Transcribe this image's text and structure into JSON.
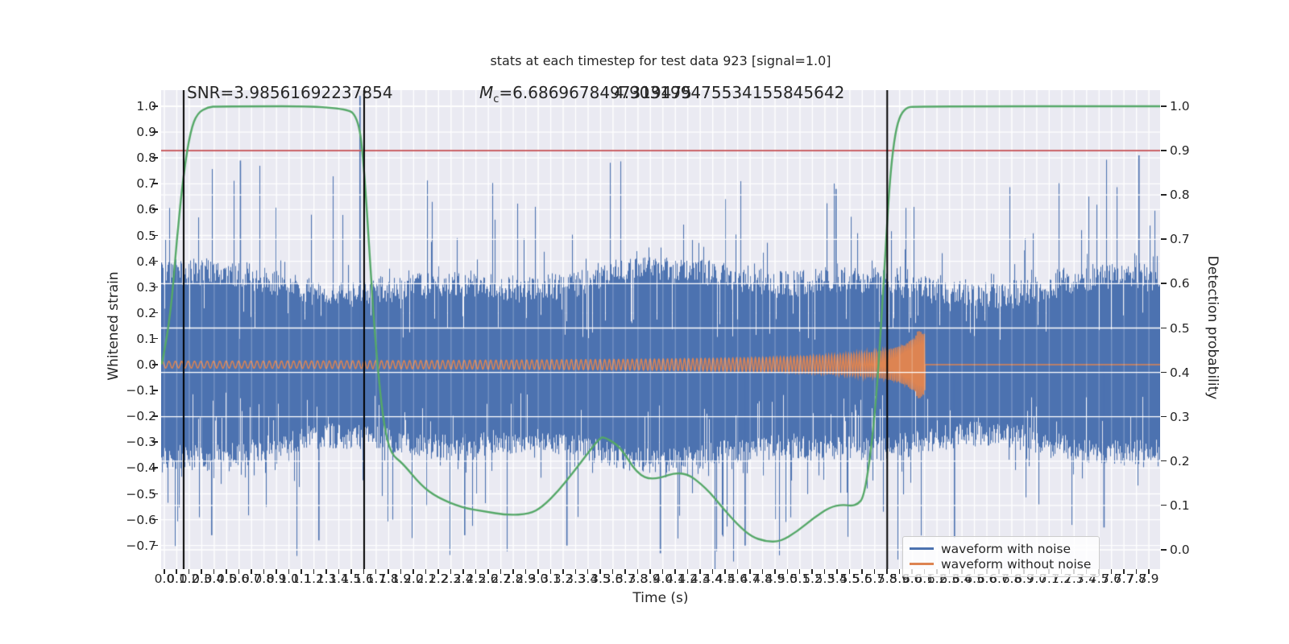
{
  "colors": {
    "figure_background": "#ffffff",
    "axes_background": "#eaeaf2",
    "grid": "#ffffff",
    "blue": "#4c72b0",
    "orange": "#dd8452",
    "green": "#55a868",
    "red": "#c44e52",
    "black": "#000000",
    "text": "#262626"
  },
  "chart_data": {
    "type": "line",
    "title": "stats at each timestep for test data 923 [signal=1.0]",
    "xlabel": "Time (s)",
    "ylabel_left": "Whitened strain",
    "ylabel_right": "Detection probability",
    "xlim": [
      -0.03,
      7.99
    ],
    "ylim_left": [
      -0.79,
      1.06
    ],
    "ylim_right": [
      -0.044,
      1.044
    ],
    "grid": "on",
    "x_ticks": [
      "0.0",
      "0.1",
      "0.2",
      "0.3",
      "0.4",
      "0.5",
      "0.6",
      "0.7",
      "0.8",
      "0.9",
      "1.0",
      "1.1",
      "1.2",
      "1.3",
      "1.4",
      "1.5",
      "1.6",
      "1.7",
      "1.8",
      "1.9",
      "2.0",
      "2.1",
      "2.2",
      "2.3",
      "2.4",
      "2.5",
      "2.6",
      "2.7",
      "2.8",
      "2.9",
      "3.0",
      "3.1",
      "3.2",
      "3.3",
      "3.4",
      "3.5",
      "3.6",
      "3.7",
      "3.8",
      "3.9",
      "4.0",
      "4.1",
      "4.2",
      "4.3",
      "4.4",
      "4.5",
      "4.6",
      "4.7",
      "4.8",
      "4.9",
      "5.0",
      "5.1",
      "5.2",
      "5.3",
      "5.4",
      "5.5",
      "5.6",
      "5.7",
      "5.8",
      "5.9",
      "6.0",
      "6.1",
      "6.2",
      "6.3",
      "6.4",
      "6.5",
      "6.6",
      "6.7",
      "6.8",
      "6.9",
      "7.0",
      "7.1",
      "7.2",
      "7.3",
      "7.4",
      "7.5",
      "7.6",
      "7.7",
      "7.8",
      "7.9"
    ],
    "y_ticks_left": [
      "1.0",
      "0.9",
      "0.8",
      "0.7",
      "0.6",
      "0.5",
      "0.4",
      "0.3",
      "0.2",
      "0.1",
      "0.0",
      "−0.1",
      "−0.2",
      "−0.3",
      "−0.4",
      "−0.5",
      "−0.6",
      "−0.7"
    ],
    "y_ticks_right": [
      "1.0",
      "0.9",
      "0.8",
      "0.7",
      "0.6",
      "0.5",
      "0.4",
      "0.3",
      "0.2",
      "0.1",
      "0.0"
    ],
    "annotations": {
      "snr": "SNR=3.98561692237854",
      "mc_prefix": "M",
      "mc_subscript": "c",
      "mc_value": "=6.6869678497319475",
      "overlap_value": "4.903199475534155845642"
    },
    "threshold": {
      "axis": "right",
      "value": 0.9
    },
    "vlines": {
      "times": [
        0.155,
        1.603,
        5.8
      ]
    },
    "series": [
      {
        "name": "waveform with noise",
        "kind": "noise",
        "axis": "left",
        "solid_band": 0.27,
        "typical_spike": 0.45,
        "max_spike": 0.8,
        "notable_spikes_top": [
          [
            0.61,
            0.79
          ],
          [
            1.57,
            1.04
          ],
          [
            5.39,
            0.68
          ],
          [
            7.82,
            0.81
          ]
        ],
        "notable_spikes_bottom": [
          [
            0.38,
            -0.66
          ],
          [
            1.24,
            -0.68
          ],
          [
            2.41,
            -0.66
          ],
          [
            3.23,
            -0.7
          ],
          [
            3.98,
            -0.73
          ],
          [
            4.66,
            -0.7
          ],
          [
            6.34,
            -0.67
          ],
          [
            7.54,
            -0.63
          ]
        ]
      },
      {
        "name": "waveform without noise",
        "kind": "chirp",
        "axis": "left",
        "t_merger": 6.103,
        "base_amplitude": 0.013,
        "peak_amplitude": 0.13,
        "base_frequency_hz": 19.3,
        "post_merger_value": 0.0
      },
      {
        "name": "detection probability",
        "kind": "curve",
        "axis": "right",
        "points": [
          [
            -0.02,
            0.42
          ],
          [
            0.01,
            0.46
          ],
          [
            0.06,
            0.56
          ],
          [
            0.1,
            0.7
          ],
          [
            0.155,
            0.85
          ],
          [
            0.21,
            0.945
          ],
          [
            0.265,
            0.985
          ],
          [
            0.35,
            0.998
          ],
          [
            0.43,
            1.0
          ],
          [
            1.46,
            1.0
          ],
          [
            1.56,
            0.97
          ],
          [
            1.6,
            0.87
          ],
          [
            1.64,
            0.7
          ],
          [
            1.68,
            0.52
          ],
          [
            1.72,
            0.385
          ],
          [
            1.765,
            0.275
          ],
          [
            1.82,
            0.215
          ],
          [
            1.91,
            0.196
          ],
          [
            2.06,
            0.145
          ],
          [
            2.19,
            0.118
          ],
          [
            2.39,
            0.095
          ],
          [
            2.56,
            0.087
          ],
          [
            2.75,
            0.078
          ],
          [
            2.93,
            0.081
          ],
          [
            3.03,
            0.096
          ],
          [
            3.16,
            0.132
          ],
          [
            3.29,
            0.178
          ],
          [
            3.41,
            0.222
          ],
          [
            3.5,
            0.254
          ],
          [
            3.54,
            0.253
          ],
          [
            3.66,
            0.232
          ],
          [
            3.79,
            0.172
          ],
          [
            3.92,
            0.156
          ],
          [
            4.16,
            0.18
          ],
          [
            4.35,
            0.139
          ],
          [
            4.48,
            0.094
          ],
          [
            4.61,
            0.054
          ],
          [
            4.71,
            0.03
          ],
          [
            4.82,
            0.019
          ],
          [
            4.94,
            0.018
          ],
          [
            5.08,
            0.042
          ],
          [
            5.21,
            0.072
          ],
          [
            5.34,
            0.096
          ],
          [
            5.44,
            0.102
          ],
          [
            5.51,
            0.099
          ],
          [
            5.565,
            0.103
          ],
          [
            5.61,
            0.118
          ],
          [
            5.66,
            0.2
          ],
          [
            5.71,
            0.333
          ],
          [
            5.75,
            0.5
          ],
          [
            5.785,
            0.67
          ],
          [
            5.82,
            0.83
          ],
          [
            5.856,
            0.925
          ],
          [
            5.895,
            0.975
          ],
          [
            5.95,
            0.997
          ],
          [
            6.02,
            1.0
          ],
          [
            7.99,
            1.0
          ]
        ]
      }
    ],
    "legend": {
      "position": "lower right",
      "entries": [
        {
          "label": "waveform with noise",
          "color": "#4c72b0"
        },
        {
          "label": "waveform without noise",
          "color": "#dd8452"
        }
      ]
    }
  }
}
